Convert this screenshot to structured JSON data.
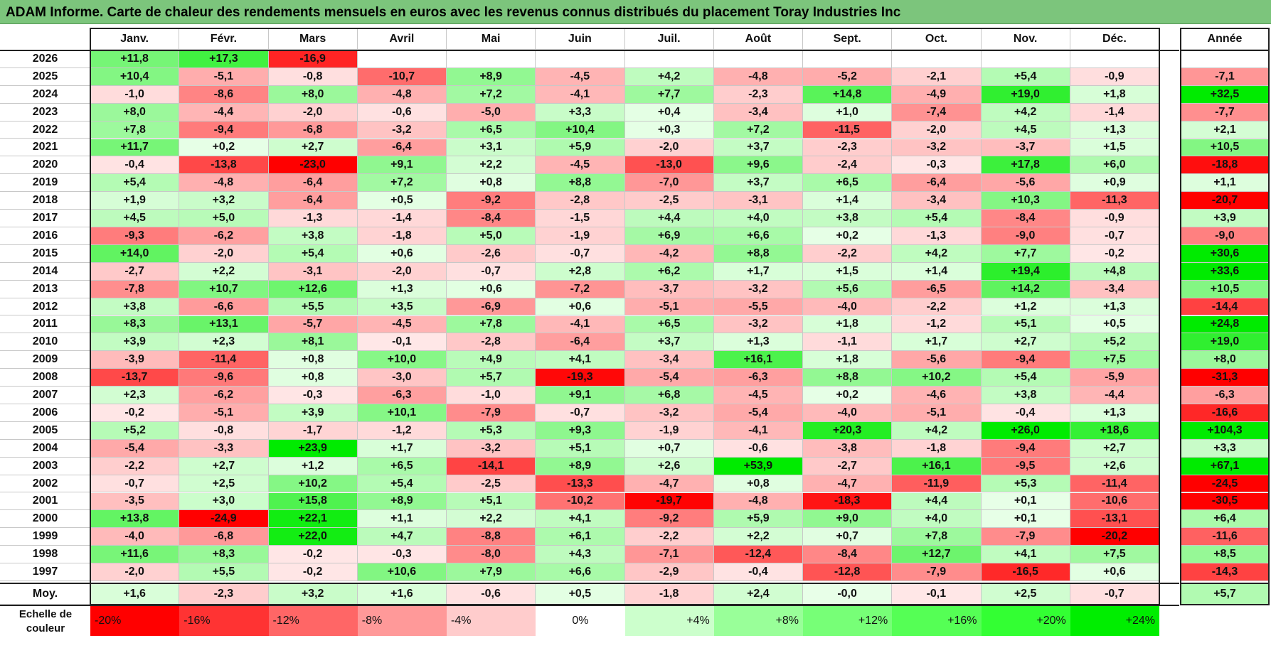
{
  "title": "ADAM Informe. Carte de chaleur des rendements mensuels en euros avec les revenus connus distribués du placement Toray Industries Inc",
  "chart_data": {
    "type": "heatmap",
    "title": "ADAM Informe. Carte de chaleur des rendements mensuels en euros avec les revenus connus distribués du placement Toray Industries Inc",
    "months": [
      "Janv.",
      "Févr.",
      "Mars",
      "Avril",
      "Mai",
      "Juin",
      "Juil.",
      "Août",
      "Sept.",
      "Oct.",
      "Nov.",
      "Déc."
    ],
    "year_header": "Année",
    "rows": [
      {
        "year": "2026",
        "values": [
          "+11,8",
          "+17,3",
          "-16,9",
          null,
          null,
          null,
          null,
          null,
          null,
          null,
          null,
          null
        ],
        "annual": null
      },
      {
        "year": "2025",
        "values": [
          "+10,4",
          "-5,1",
          "-0,8",
          "-10,7",
          "+8,9",
          "-4,5",
          "+4,2",
          "-4,8",
          "-5,2",
          "-2,1",
          "+5,4",
          "-0,9"
        ],
        "annual": "-7,1"
      },
      {
        "year": "2024",
        "values": [
          "-1,0",
          "-8,6",
          "+8,0",
          "-4,8",
          "+7,2",
          "-4,1",
          "+7,7",
          "-2,3",
          "+14,8",
          "-4,9",
          "+19,0",
          "+1,8"
        ],
        "annual": "+32,5"
      },
      {
        "year": "2023",
        "values": [
          "+8,0",
          "-4,4",
          "-2,0",
          "-0,6",
          "-5,0",
          "+3,3",
          "+0,4",
          "-3,4",
          "+1,0",
          "-7,4",
          "+4,2",
          "-1,4"
        ],
        "annual": "-7,7"
      },
      {
        "year": "2022",
        "values": [
          "+7,8",
          "-9,4",
          "-6,8",
          "-3,2",
          "+6,5",
          "+10,4",
          "+0,3",
          "+7,2",
          "-11,5",
          "-2,0",
          "+4,5",
          "+1,3"
        ],
        "annual": "+2,1"
      },
      {
        "year": "2021",
        "values": [
          "+11,7",
          "+0,2",
          "+2,7",
          "-6,4",
          "+3,1",
          "+5,9",
          "-2,0",
          "+3,7",
          "-2,3",
          "-3,2",
          "-3,7",
          "+1,5"
        ],
        "annual": "+10,5"
      },
      {
        "year": "2020",
        "values": [
          "-0,4",
          "-13,8",
          "-23,0",
          "+9,1",
          "+2,2",
          "-4,5",
          "-13,0",
          "+9,6",
          "-2,4",
          "-0,3",
          "+17,8",
          "+6,0"
        ],
        "annual": "-18,8"
      },
      {
        "year": "2019",
        "values": [
          "+5,4",
          "-4,8",
          "-6,4",
          "+7,2",
          "+0,8",
          "+8,8",
          "-7,0",
          "+3,7",
          "+6,5",
          "-6,4",
          "-5,6",
          "+0,9"
        ],
        "annual": "+1,1"
      },
      {
        "year": "2018",
        "values": [
          "+1,9",
          "+3,2",
          "-6,4",
          "+0,5",
          "-9,2",
          "-2,8",
          "-2,5",
          "-3,1",
          "+1,4",
          "-3,4",
          "+10,3",
          "-11,3"
        ],
        "annual": "-20,7"
      },
      {
        "year": "2017",
        "values": [
          "+4,5",
          "+5,0",
          "-1,3",
          "-1,4",
          "-8,4",
          "-1,5",
          "+4,4",
          "+4,0",
          "+3,8",
          "+5,4",
          "-8,4",
          "-0,9"
        ],
        "annual": "+3,9"
      },
      {
        "year": "2016",
        "values": [
          "-9,3",
          "-6,2",
          "+3,8",
          "-1,8",
          "+5,0",
          "-1,9",
          "+6,9",
          "+6,6",
          "+0,2",
          "-1,3",
          "-9,0",
          "-0,7"
        ],
        "annual": "-9,0"
      },
      {
        "year": "2015",
        "values": [
          "+14,0",
          "-2,0",
          "+5,4",
          "+0,6",
          "-2,6",
          "-0,7",
          "-4,2",
          "+8,8",
          "-2,2",
          "+4,2",
          "+7,7",
          "-0,2"
        ],
        "annual": "+30,6"
      },
      {
        "year": "2014",
        "values": [
          "-2,7",
          "+2,2",
          "-3,1",
          "-2,0",
          "-0,7",
          "+2,8",
          "+6,2",
          "+1,7",
          "+1,5",
          "+1,4",
          "+19,4",
          "+4,8"
        ],
        "annual": "+33,6"
      },
      {
        "year": "2013",
        "values": [
          "-7,8",
          "+10,7",
          "+12,6",
          "+1,3",
          "+0,6",
          "-7,2",
          "-3,7",
          "-3,2",
          "+5,6",
          "-6,5",
          "+14,2",
          "-3,4"
        ],
        "annual": "+10,5"
      },
      {
        "year": "2012",
        "values": [
          "+3,8",
          "-6,6",
          "+5,5",
          "+3,5",
          "-6,9",
          "+0,6",
          "-5,1",
          "-5,5",
          "-4,0",
          "-2,2",
          "+1,2",
          "+1,3"
        ],
        "annual": "-14,4"
      },
      {
        "year": "2011",
        "values": [
          "+8,3",
          "+13,1",
          "-5,7",
          "-4,5",
          "+7,8",
          "-4,1",
          "+6,5",
          "-3,2",
          "+1,8",
          "-1,2",
          "+5,1",
          "+0,5"
        ],
        "annual": "+24,8"
      },
      {
        "year": "2010",
        "values": [
          "+3,9",
          "+2,3",
          "+8,1",
          "-0,1",
          "-2,8",
          "-6,4",
          "+3,7",
          "+1,3",
          "-1,1",
          "+1,7",
          "+2,7",
          "+5,2"
        ],
        "annual": "+19,0"
      },
      {
        "year": "2009",
        "values": [
          "-3,9",
          "-11,4",
          "+0,8",
          "+10,0",
          "+4,9",
          "+4,1",
          "-3,4",
          "+16,1",
          "+1,8",
          "-5,6",
          "-9,4",
          "+7,5"
        ],
        "annual": "+8,0"
      },
      {
        "year": "2008",
        "values": [
          "-13,7",
          "-9,6",
          "+0,8",
          "-3,0",
          "+5,7",
          "-19,3",
          "-5,4",
          "-6,3",
          "+8,8",
          "+10,2",
          "+5,4",
          "-5,9"
        ],
        "annual": "-31,3"
      },
      {
        "year": "2007",
        "values": [
          "+2,3",
          "-6,2",
          "-0,3",
          "-6,3",
          "-1,0",
          "+9,1",
          "+6,8",
          "-4,5",
          "+0,2",
          "-4,6",
          "+3,8",
          "-4,4"
        ],
        "annual": "-6,3"
      },
      {
        "year": "2006",
        "values": [
          "-0,2",
          "-5,1",
          "+3,9",
          "+10,1",
          "-7,9",
          "-0,7",
          "-3,2",
          "-5,4",
          "-4,0",
          "-5,1",
          "-0,4",
          "+1,3"
        ],
        "annual": "-16,6"
      },
      {
        "year": "2005",
        "values": [
          "+5,2",
          "-0,8",
          "-1,7",
          "-1,2",
          "+5,3",
          "+9,3",
          "-1,9",
          "-4,1",
          "+20,3",
          "+4,2",
          "+26,0",
          "+18,6"
        ],
        "annual": "+104,3"
      },
      {
        "year": "2004",
        "values": [
          "-5,4",
          "-3,3",
          "+23,9",
          "+1,7",
          "-3,2",
          "+5,1",
          "+0,7",
          "-0,6",
          "-3,8",
          "-1,8",
          "-9,4",
          "+2,7"
        ],
        "annual": "+3,3"
      },
      {
        "year": "2003",
        "values": [
          "-2,2",
          "+2,7",
          "+1,2",
          "+6,5",
          "-14,1",
          "+8,9",
          "+2,6",
          "+53,9",
          "-2,7",
          "+16,1",
          "-9,5",
          "+2,6"
        ],
        "annual": "+67,1"
      },
      {
        "year": "2002",
        "values": [
          "-0,7",
          "+2,5",
          "+10,2",
          "+5,4",
          "-2,5",
          "-13,3",
          "-4,7",
          "+0,8",
          "-4,7",
          "-11,9",
          "+5,3",
          "-11,4"
        ],
        "annual": "-24,5"
      },
      {
        "year": "2001",
        "values": [
          "-3,5",
          "+3,0",
          "+15,8",
          "+8,9",
          "+5,1",
          "-10,2",
          "-19,7",
          "-4,8",
          "-18,3",
          "+4,4",
          "+0,1",
          "-10,6"
        ],
        "annual": "-30,5"
      },
      {
        "year": "2000",
        "values": [
          "+13,8",
          "-24,9",
          "+22,1",
          "+1,1",
          "+2,2",
          "+4,1",
          "-9,2",
          "+5,9",
          "+9,0",
          "+4,0",
          "+0,1",
          "-13,1"
        ],
        "annual": "+6,4"
      },
      {
        "year": "1999",
        "values": [
          "-4,0",
          "-6,8",
          "+22,0",
          "+4,7",
          "-8,8",
          "+6,1",
          "-2,2",
          "+2,2",
          "+0,7",
          "+7,8",
          "-7,9",
          "-20,2"
        ],
        "annual": "-11,6"
      },
      {
        "year": "1998",
        "values": [
          "+11,6",
          "+8,3",
          "-0,2",
          "-0,3",
          "-8,0",
          "+4,3",
          "-7,1",
          "-12,4",
          "-8,4",
          "+12,7",
          "+4,1",
          "+7,5"
        ],
        "annual": "+8,5"
      },
      {
        "year": "1997",
        "values": [
          "-2,0",
          "+5,5",
          "-0,2",
          "+10,6",
          "+7,9",
          "+6,6",
          "-2,9",
          "-0,4",
          "-12,8",
          "-7,9",
          "-16,5",
          "+0,6"
        ],
        "annual": "-14,3"
      }
    ],
    "average": {
      "label": "Moy.",
      "values": [
        "+1,6",
        "-2,3",
        "+3,2",
        "+1,6",
        "-0,6",
        "+0,5",
        "-1,8",
        "+2,4",
        "-0,0",
        "-0,1",
        "+2,5",
        "-0,7"
      ],
      "annual": "+5,7"
    },
    "scale": {
      "label": "Echelle de couleur",
      "steps": [
        {
          "label": "-20%",
          "value": -20,
          "color": "#ff0000"
        },
        {
          "label": "-16%",
          "value": -16,
          "color": "#ff3333"
        },
        {
          "label": "-12%",
          "value": -12,
          "color": "#ff6666"
        },
        {
          "label": "-8%",
          "value": -8,
          "color": "#ff9999"
        },
        {
          "label": "-4%",
          "value": -4,
          "color": "#ffcccc"
        },
        {
          "label": "0%",
          "value": 0,
          "color": "#ffffff"
        },
        {
          "label": "+4%",
          "value": 4,
          "color": "#ccffcc"
        },
        {
          "label": "+8%",
          "value": 8,
          "color": "#99ff99"
        },
        {
          "label": "+12%",
          "value": 12,
          "color": "#77ff77"
        },
        {
          "label": "+16%",
          "value": 16,
          "color": "#55ff55"
        },
        {
          "label": "+20%",
          "value": 20,
          "color": "#33ff33"
        },
        {
          "label": "+24%",
          "value": 24,
          "color": "#00ee00"
        }
      ]
    }
  }
}
